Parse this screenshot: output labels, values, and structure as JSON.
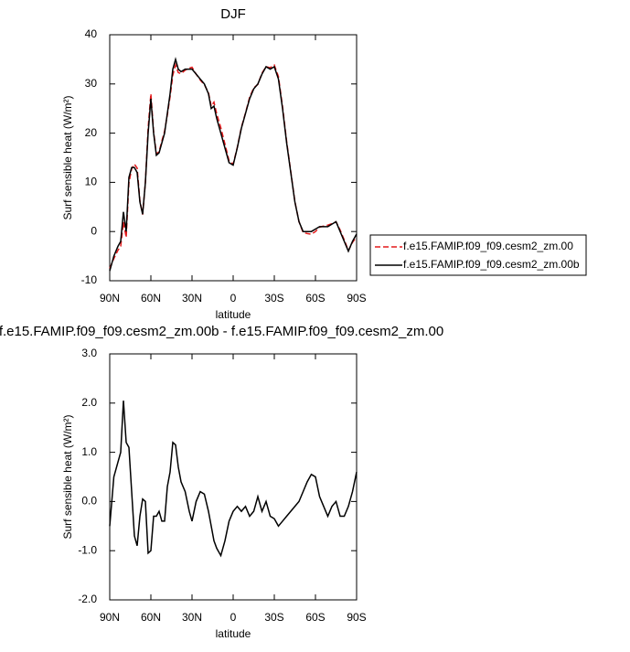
{
  "chart_data": [
    {
      "type": "line",
      "title": "DJF",
      "xlabel": "latitude",
      "ylabel": "Surf sensible heat (W/m²)",
      "x": [
        90,
        87,
        84,
        82,
        80,
        78,
        76,
        74,
        72,
        70,
        68,
        66,
        64,
        62,
        60,
        58,
        56,
        54,
        52,
        50,
        48,
        46,
        44,
        42,
        40,
        38,
        35,
        32,
        30,
        27,
        24,
        21,
        18,
        16,
        14,
        12,
        9,
        6,
        3,
        0,
        -3,
        -6,
        -9,
        -12,
        -15,
        -18,
        -21,
        -24,
        -27,
        -30,
        -33,
        -36,
        -39,
        -42,
        -45,
        -48,
        -51,
        -54,
        -57,
        -60,
        -63,
        -66,
        -69,
        -72,
        -75,
        -78,
        -81,
        -84,
        -87,
        -90
      ],
      "series": [
        {
          "name": "f.e15.FAMIP.f09_f09.cesm2_zm.00",
          "color": "#e31a1c",
          "dashed": true,
          "values": [
            -7.5,
            -5.5,
            -3.8,
            -3.0,
            1.95,
            -1.2,
            9.9,
            12.8,
            13.7,
            12.9,
            6.3,
            3.45,
            10,
            21.05,
            28,
            20.3,
            15.8,
            16.2,
            18.4,
            20.4,
            23.7,
            27.4,
            31.8,
            33.85,
            32.3,
            32.1,
            32.8,
            33.2,
            33.4,
            32,
            30.8,
            29.85,
            28.2,
            25.5,
            26.3,
            23.95,
            21.1,
            17.8,
            14.4,
            13.7,
            17.1,
            21.2,
            24.1,
            27.3,
            29.2,
            29.9,
            32.2,
            33.5,
            33.3,
            33.85,
            31.5,
            25.4,
            18.3,
            12.2,
            6.1,
            2,
            -0.2,
            -0.4,
            -0.55,
            0,
            0.9,
            1.1,
            1.3,
            1.6,
            2,
            0.3,
            -1.7,
            -3.9,
            -2.2,
            -1.1
          ]
        },
        {
          "name": "f.e15.FAMIP.f09_f09.cesm2_zm.00b",
          "color": "#000000",
          "dashed": false,
          "values": [
            -8,
            -5,
            -3,
            -2,
            4,
            0,
            11,
            13,
            13,
            12,
            6,
            3.5,
            10,
            20,
            27,
            20,
            15.5,
            16,
            18,
            20,
            24,
            28,
            33,
            35,
            33,
            32.5,
            33,
            33,
            33,
            32,
            31,
            30,
            28,
            25,
            25.5,
            23,
            20,
            17,
            14,
            13.5,
            17,
            21,
            24,
            27,
            29,
            30,
            32,
            33.5,
            33,
            33.5,
            31,
            25,
            18,
            12,
            6,
            2,
            0,
            0,
            0,
            0.5,
            1,
            1,
            1,
            1.5,
            2,
            0,
            -2,
            -4,
            -2,
            -0.5
          ]
        }
      ],
      "xlim": [
        90,
        -90
      ],
      "xticks": [
        {
          "value": 90,
          "label": "90N"
        },
        {
          "value": 60,
          "label": "60N"
        },
        {
          "value": 30,
          "label": "30N"
        },
        0,
        {
          "value": -30,
          "label": "30S"
        },
        {
          "value": -60,
          "label": "60S"
        },
        {
          "value": -90,
          "label": "90S"
        }
      ],
      "ylim": [
        -10,
        40
      ],
      "yticks": [
        -10,
        0,
        10,
        20,
        30,
        40
      ],
      "legend": "right"
    },
    {
      "type": "line",
      "title": "f.e15.FAMIP.f09_f09.cesm2_zm.00b - f.e15.FAMIP.f09_f09.cesm2_zm.00",
      "xlabel": "latitude",
      "ylabel": "Surf sensible heat (W/m²)",
      "x": [
        90,
        87,
        84,
        82,
        80,
        78,
        76,
        74,
        72,
        70,
        68,
        66,
        64,
        62,
        60,
        58,
        56,
        54,
        52,
        50,
        48,
        46,
        44,
        42,
        40,
        38,
        35,
        32,
        30,
        27,
        24,
        21,
        18,
        16,
        14,
        12,
        9,
        6,
        3,
        0,
        -3,
        -6,
        -9,
        -12,
        -15,
        -18,
        -21,
        -24,
        -27,
        -30,
        -33,
        -36,
        -39,
        -42,
        -45,
        -48,
        -51,
        -54,
        -57,
        -60,
        -63,
        -66,
        -69,
        -72,
        -75,
        -78,
        -81,
        -84,
        -87,
        -90
      ],
      "series": [
        {
          "color": "#000000",
          "dashed": false,
          "values": [
            -0.5,
            0.5,
            0.8,
            1.0,
            2.05,
            1.2,
            1.1,
            0.2,
            -0.7,
            -0.9,
            -0.3,
            0.05,
            0.0,
            -1.05,
            -1.0,
            -0.3,
            -0.3,
            -0.2,
            -0.4,
            -0.4,
            0.3,
            0.6,
            1.2,
            1.15,
            0.7,
            0.4,
            0.2,
            -0.2,
            -0.4,
            0.0,
            0.2,
            0.15,
            -0.2,
            -0.5,
            -0.8,
            -0.95,
            -1.1,
            -0.8,
            -0.4,
            -0.2,
            -0.1,
            -0.2,
            -0.1,
            -0.3,
            -0.2,
            0.1,
            -0.2,
            0.0,
            -0.3,
            -0.35,
            -0.5,
            -0.4,
            -0.3,
            -0.2,
            -0.1,
            0.0,
            0.2,
            0.4,
            0.55,
            0.5,
            0.1,
            -0.1,
            -0.3,
            -0.1,
            0.0,
            -0.3,
            -0.3,
            -0.1,
            0.2,
            0.6
          ]
        }
      ],
      "xlim": [
        90,
        -90
      ],
      "xticks": [
        {
          "value": 90,
          "label": "90N"
        },
        {
          "value": 60,
          "label": "60N"
        },
        {
          "value": 30,
          "label": "30N"
        },
        0,
        {
          "value": -30,
          "label": "30S"
        },
        {
          "value": -60,
          "label": "60S"
        },
        {
          "value": -90,
          "label": "90S"
        }
      ],
      "ylim": [
        -2,
        3
      ],
      "yticks": [
        {
          "value": -2,
          "label": "-2.0"
        },
        {
          "value": -1,
          "label": "-1.0"
        },
        {
          "value": 0,
          "label": "0.0"
        },
        {
          "value": 1,
          "label": "1.0"
        },
        {
          "value": 2,
          "label": "2.0"
        },
        {
          "value": 3,
          "label": "3.0"
        }
      ]
    }
  ]
}
